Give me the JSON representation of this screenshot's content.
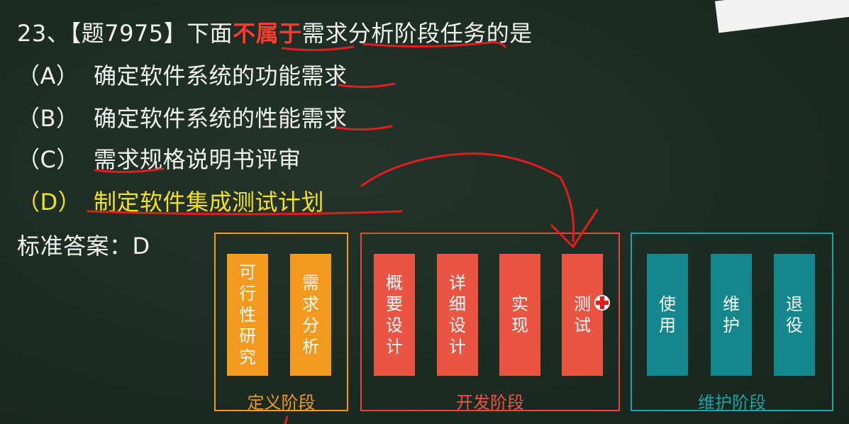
{
  "question": {
    "number_prefix": "23、【题7975】下面",
    "highlight": "不属于",
    "suffix": "需求分析阶段任务的是"
  },
  "options": [
    {
      "letter": "（A）",
      "text": "确定软件系统的功能需求"
    },
    {
      "letter": "（B）",
      "text": "确定软件系统的性能需求"
    },
    {
      "letter": "（C）",
      "text": "需求规格说明书评审"
    },
    {
      "letter": "（D）",
      "text": "制定软件集成测试计划"
    }
  ],
  "answer": "标准答案：D",
  "diagram": {
    "phases": [
      {
        "label": "定义阶段",
        "color": "#f39a1e",
        "steps": [
          "可行性研究",
          "需求分析"
        ]
      },
      {
        "label": "开发阶段",
        "color": "#ea5443",
        "steps": [
          "概要设计",
          "详细设计",
          "实现",
          "测试"
        ]
      },
      {
        "label": "维护阶段",
        "color": "#1aa3a9",
        "steps": [
          "使用",
          "维护",
          "退役"
        ]
      }
    ]
  },
  "colors": {
    "background": "#1e2d24",
    "highlight_text": "#ff3b2f",
    "option_d_text": "#f3e11b",
    "annotation_ink": "#e11d1d"
  },
  "icons": {
    "cursor": "plus-cursor-icon"
  }
}
